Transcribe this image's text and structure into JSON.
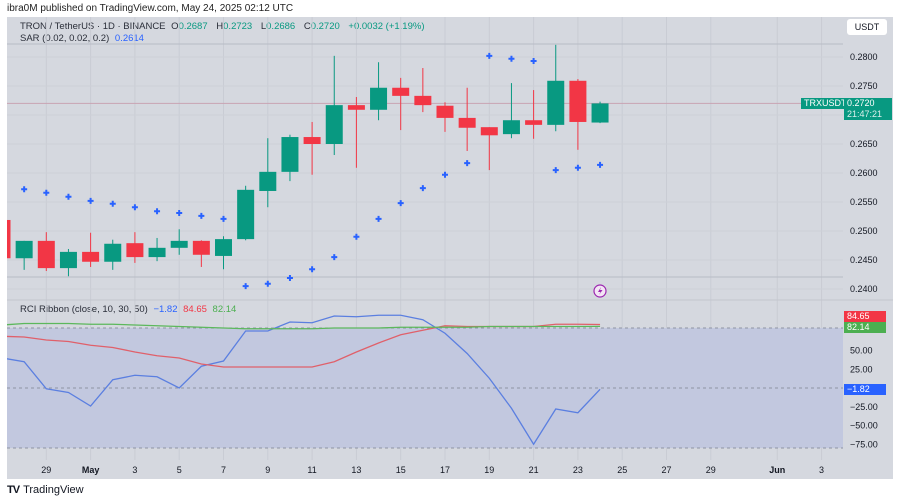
{
  "published": "ibra0M published on TradingView.com, May 24, 2025 02:12 UTC",
  "legend": {
    "symbol": "TRON / TetherUS · 1D · BINANCE",
    "o_label": "O",
    "o": "0.2687",
    "h_label": "H",
    "h": "0.2723",
    "l_label": "L",
    "l": "0.2686",
    "c_label": "C",
    "c": "0.2720",
    "change": "+0.0032 (+1.19%)",
    "sar_label": "SAR (0.02, 0.02, 0.2)",
    "sar_value": "0.2614",
    "rci_label": "RCI Ribbon (close, 10, 30, 50)",
    "rci_short": "−1.82",
    "rci_mid": "84.65",
    "rci_long": "82.14"
  },
  "currency_button": "USDT",
  "price_badge": {
    "symbol": "TRXUSDT",
    "price": "0.2720",
    "countdown": "21:47:21"
  },
  "rci_badges": {
    "short": "−1.82",
    "mid": "84.65",
    "long": "82.14"
  },
  "footer": {
    "logo": "TV",
    "brand": "TradingView"
  },
  "colors": {
    "up": "#089981",
    "down": "#f23645",
    "sar": "#2962ff",
    "rci_short": "#5b7fe0",
    "rci_mid": "#e0606a",
    "rci_long": "#5cb85c",
    "background": "#d5d8df"
  },
  "icons": {
    "alert": "lightning-icon"
  },
  "chart_data": [
    {
      "type": "candlestick",
      "title": "TRON / TetherUS · 1D · BINANCE",
      "ylim": [
        0.2375,
        0.2835
      ],
      "yticks": [
        "0.2800",
        "0.2750",
        "0.2650",
        "0.2600",
        "0.2550",
        "0.2500",
        "0.2450",
        "0.2400"
      ],
      "xticks": [
        {
          "label": "29",
          "date": "Apr 29"
        },
        {
          "label": "May",
          "date": "May 1"
        },
        {
          "label": "3",
          "date": "May 3"
        },
        {
          "label": "5",
          "date": "May 5"
        },
        {
          "label": "7",
          "date": "May 7"
        },
        {
          "label": "9",
          "date": "May 9"
        },
        {
          "label": "11",
          "date": "May 11"
        },
        {
          "label": "13",
          "date": "May 13"
        },
        {
          "label": "15",
          "date": "May 15"
        },
        {
          "label": "17",
          "date": "May 17"
        },
        {
          "label": "19",
          "date": "May 19"
        },
        {
          "label": "21",
          "date": "May 21"
        },
        {
          "label": "23",
          "date": "May 23"
        },
        {
          "label": "25",
          "date": "May 25"
        },
        {
          "label": "27",
          "date": "May 27"
        },
        {
          "label": "29",
          "date": "May 29"
        },
        {
          "label": "Jun",
          "date": "Jun 1"
        },
        {
          "label": "3",
          "date": "Jun 3"
        }
      ],
      "candles": [
        {
          "date": "Apr 27",
          "o": 0.2519,
          "h": 0.2519,
          "l": 0.2453,
          "c": 0.2453
        },
        {
          "date": "Apr 28",
          "o": 0.2453,
          "h": 0.2483,
          "l": 0.2433,
          "c": 0.2483
        },
        {
          "date": "Apr 29",
          "o": 0.2483,
          "h": 0.2498,
          "l": 0.2431,
          "c": 0.2436
        },
        {
          "date": "Apr 30",
          "o": 0.2436,
          "h": 0.2469,
          "l": 0.2422,
          "c": 0.2464
        },
        {
          "date": "May 1",
          "o": 0.2464,
          "h": 0.2497,
          "l": 0.2438,
          "c": 0.2447
        },
        {
          "date": "May 2",
          "o": 0.2447,
          "h": 0.2485,
          "l": 0.2433,
          "c": 0.2478
        },
        {
          "date": "May 3",
          "o": 0.2479,
          "h": 0.2498,
          "l": 0.2445,
          "c": 0.2455
        },
        {
          "date": "May 4",
          "o": 0.2455,
          "h": 0.2488,
          "l": 0.2448,
          "c": 0.2471
        },
        {
          "date": "May 5",
          "o": 0.2471,
          "h": 0.2503,
          "l": 0.2459,
          "c": 0.2483
        },
        {
          "date": "May 6",
          "o": 0.2483,
          "h": 0.2484,
          "l": 0.2438,
          "c": 0.2459
        },
        {
          "date": "May 7",
          "o": 0.2457,
          "h": 0.2491,
          "l": 0.2434,
          "c": 0.2486
        },
        {
          "date": "May 8",
          "o": 0.2486,
          "h": 0.2578,
          "l": 0.2484,
          "c": 0.2571
        },
        {
          "date": "May 9",
          "o": 0.2569,
          "h": 0.266,
          "l": 0.2541,
          "c": 0.2602
        },
        {
          "date": "May 10",
          "o": 0.2602,
          "h": 0.2666,
          "l": 0.2586,
          "c": 0.2662
        },
        {
          "date": "May 11",
          "o": 0.2662,
          "h": 0.2688,
          "l": 0.2597,
          "c": 0.265
        },
        {
          "date": "May 12",
          "o": 0.265,
          "h": 0.2802,
          "l": 0.2631,
          "c": 0.2717
        },
        {
          "date": "May 13",
          "o": 0.2717,
          "h": 0.2731,
          "l": 0.2609,
          "c": 0.2709
        },
        {
          "date": "May 14",
          "o": 0.2709,
          "h": 0.2791,
          "l": 0.2691,
          "c": 0.2747
        },
        {
          "date": "May 15",
          "o": 0.2747,
          "h": 0.2764,
          "l": 0.2674,
          "c": 0.2733
        },
        {
          "date": "May 16",
          "o": 0.2733,
          "h": 0.2781,
          "l": 0.2705,
          "c": 0.2717
        },
        {
          "date": "May 17",
          "o": 0.2716,
          "h": 0.2722,
          "l": 0.2671,
          "c": 0.2695
        },
        {
          "date": "May 18",
          "o": 0.2695,
          "h": 0.2747,
          "l": 0.2638,
          "c": 0.2678
        },
        {
          "date": "May 19",
          "o": 0.2679,
          "h": 0.2679,
          "l": 0.2605,
          "c": 0.2665
        },
        {
          "date": "May 20",
          "o": 0.2667,
          "h": 0.2755,
          "l": 0.266,
          "c": 0.2691
        },
        {
          "date": "May 21",
          "o": 0.2691,
          "h": 0.2743,
          "l": 0.2659,
          "c": 0.2683
        },
        {
          "date": "May 22",
          "o": 0.2683,
          "h": 0.2821,
          "l": 0.2672,
          "c": 0.2759
        },
        {
          "date": "May 23",
          "o": 0.2759,
          "h": 0.2762,
          "l": 0.264,
          "c": 0.2688
        },
        {
          "date": "May 24",
          "o": 0.2687,
          "h": 0.2723,
          "l": 0.2686,
          "c": 0.272
        }
      ],
      "sar": {
        "name": "SAR (0.02, 0.02, 0.2)",
        "dates": [
          "Apr 28",
          "Apr 29",
          "Apr 30",
          "May 1",
          "May 2",
          "May 3",
          "May 4",
          "May 5",
          "May 6",
          "May 7",
          "May 8",
          "May 9",
          "May 10",
          "May 11",
          "May 12",
          "May 13",
          "May 14",
          "May 15",
          "May 16",
          "May 17",
          "May 18",
          "May 19",
          "May 20",
          "May 21",
          "May 22",
          "May 23",
          "May 24"
        ],
        "values": [
          0.2572,
          0.2566,
          0.2559,
          0.2552,
          0.2547,
          0.2541,
          0.2534,
          0.2531,
          0.2526,
          0.2521,
          0.2405,
          0.2409,
          0.2419,
          0.2434,
          0.2455,
          0.249,
          0.2521,
          0.2548,
          0.2574,
          0.2597,
          0.2617,
          0.2802,
          0.2797,
          0.2793,
          0.2605,
          0.2609,
          0.2614
        ]
      },
      "last_price": 0.272
    },
    {
      "type": "line",
      "title": "RCI Ribbon (close, 10, 30, 50)",
      "yticks": [
        "50.00",
        "25.00",
        "−25.00",
        "−50.00",
        "−75.00"
      ],
      "bands": [
        80,
        0,
        -80
      ],
      "dates_from": "Apr 27",
      "series": [
        {
          "name": "10",
          "values": [
            40,
            35,
            -1,
            -6,
            -24,
            11,
            17,
            15,
            0,
            29,
            36,
            76,
            76,
            88,
            87,
            96,
            95,
            97,
            97,
            91,
            73,
            46,
            13,
            -27,
            -75,
            -28,
            -33,
            -1.82
          ]
        },
        {
          "name": "30",
          "values": [
            69,
            68,
            64,
            62,
            57,
            54,
            48,
            43,
            40,
            32,
            28,
            28,
            28,
            28,
            28,
            35,
            48,
            60,
            71,
            77,
            83,
            82,
            82,
            82,
            82,
            85,
            85,
            84.65
          ]
        },
        {
          "name": "50",
          "values": [
            84,
            86,
            86,
            86,
            85,
            85,
            84,
            83,
            82,
            81,
            80,
            79,
            79,
            79,
            79,
            80,
            80,
            80,
            81,
            81,
            81,
            81,
            82,
            82,
            82,
            82,
            82,
            82.14
          ]
        }
      ]
    }
  ]
}
